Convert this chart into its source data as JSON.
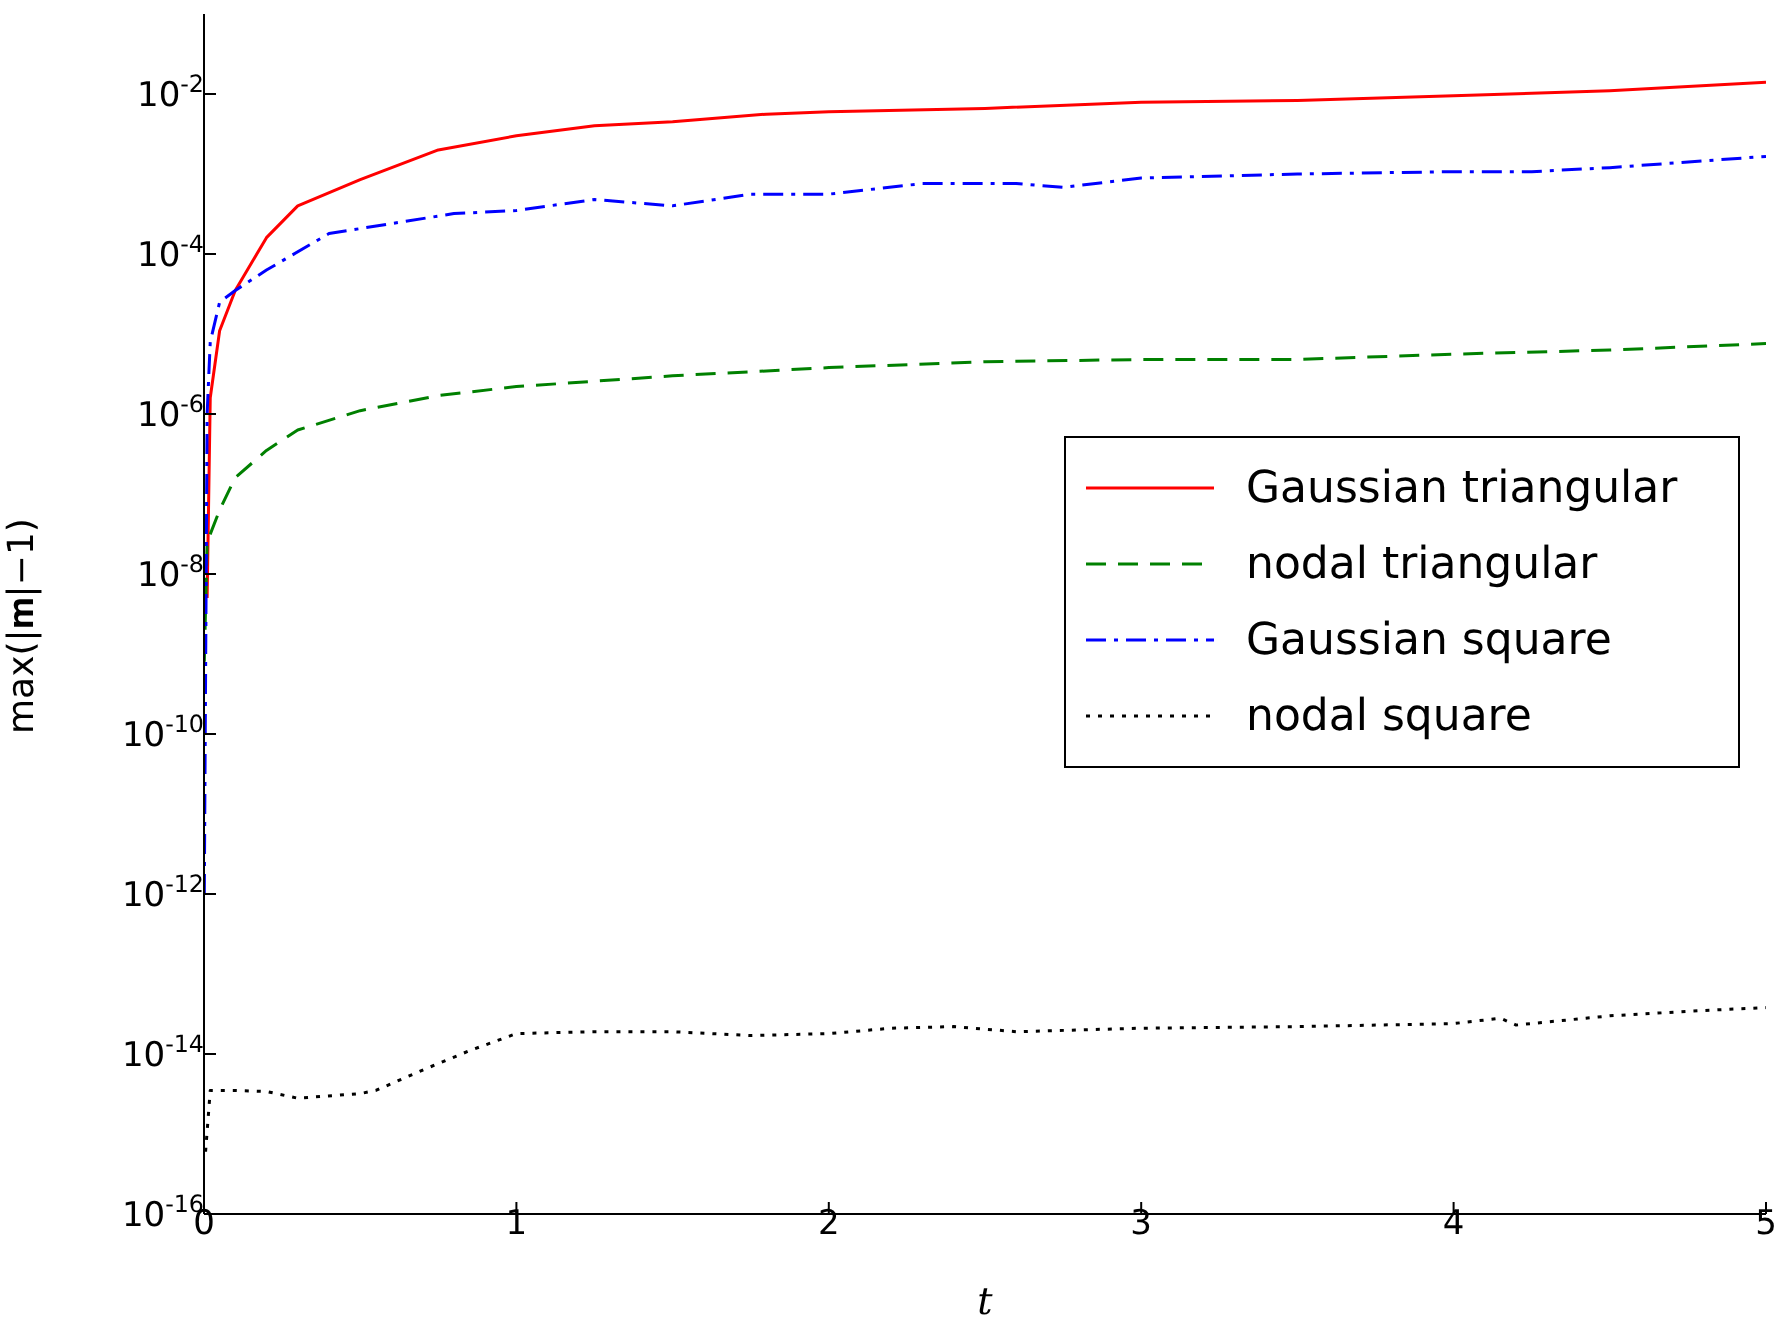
{
  "chart_data": {
    "type": "line",
    "xlabel": "t",
    "ylabel": "max(|𝐦|−1)",
    "log": "y",
    "grid": false,
    "legend": "right",
    "marker": "none",
    "xlim": [
      0,
      5
    ],
    "xticks": [
      0,
      1,
      2,
      3,
      4,
      5
    ],
    "ylim": [
      1e-16,
      0.1
    ],
    "yticks": [
      {
        "value": 1e-16,
        "label": "10$^{-16}$"
      },
      {
        "value": 1e-14,
        "label": "10$^{-14}$"
      },
      {
        "value": 1e-12,
        "label": "10$^{-12}$"
      },
      {
        "value": 1e-10,
        "label": "10$^{-10}$"
      },
      {
        "value": 1e-08,
        "label": "10$^{-8}$"
      },
      {
        "value": 1e-06,
        "label": "10$^{-6}$"
      },
      {
        "value": 0.0001,
        "label": "10$^{-4}$"
      },
      {
        "value": 0.01,
        "label": "10$^{-2}$"
      }
    ],
    "series": [
      {
        "name": "Gaussian triangular",
        "color": "#ff0000",
        "line_style": "solid",
        "x": [
          0.01,
          0.02,
          0.05,
          0.1,
          0.2,
          0.3,
          0.5,
          0.75,
          1,
          1.25,
          1.5,
          1.8,
          2,
          2.5,
          3,
          3.5,
          4,
          4.5,
          5
        ],
        "values": [
          5e-09,
          1.6e-06,
          1.1e-05,
          3.5e-05,
          0.00016,
          0.0004,
          0.00085,
          0.002,
          0.003,
          0.004,
          0.0045,
          0.0056,
          0.006,
          0.0066,
          0.0079,
          0.0083,
          0.0095,
          0.011,
          0.014
        ]
      },
      {
        "name": "nodal triangular",
        "color": "#008000",
        "line_style": "dashed",
        "x": [
          0.001,
          0.01,
          0.05,
          0.1,
          0.2,
          0.3,
          0.5,
          0.75,
          1,
          1.5,
          2,
          2.5,
          3,
          3.5,
          4,
          4.5,
          5
        ],
        "values": [
          8e-10,
          2.5e-08,
          6.3e-08,
          1.6e-07,
          3.5e-07,
          6.3e-07,
          1.1e-06,
          1.7e-06,
          2.2e-06,
          3e-06,
          3.8e-06,
          4.5e-06,
          4.8e-06,
          4.8e-06,
          5.6e-06,
          6.3e-06,
          7.6e-06
        ]
      },
      {
        "name": "Gaussian square",
        "color": "#0000ff",
        "line_style": "dashdot",
        "x": [
          0.001,
          0.01,
          0.02,
          0.05,
          0.1,
          0.2,
          0.4,
          0.6,
          0.8,
          1,
          1.25,
          1.5,
          1.75,
          2,
          2.3,
          2.6,
          2.75,
          3,
          3.5,
          4,
          4.25,
          4.5,
          5
        ],
        "values": [
          1e-12,
          1e-06,
          8e-06,
          2.5e-05,
          3.5e-05,
          6.3e-05,
          0.00018,
          0.00024,
          0.00032,
          0.00035,
          0.00048,
          0.0004,
          0.00056,
          0.00056,
          0.00076,
          0.00076,
          0.00068,
          0.00089,
          0.001,
          0.00107,
          0.00107,
          0.0012,
          0.00166
        ]
      },
      {
        "name": "nodal square",
        "color": "#000000",
        "line_style": "dotted",
        "x": [
          0.005,
          0.02,
          0.1,
          0.2,
          0.3,
          0.5,
          0.55,
          0.7,
          0.85,
          1,
          1.25,
          1.5,
          1.75,
          2,
          2.2,
          2.4,
          2.6,
          3,
          3.5,
          4,
          4.15,
          4.2,
          4.5,
          4.8,
          5
        ],
        "values": [
          6e-16,
          3.5e-15,
          3.5e-15,
          3.4e-15,
          2.8e-15,
          3.2e-15,
          3.5e-15,
          6.3e-15,
          1.1e-14,
          1.8e-14,
          1.9e-14,
          1.9e-14,
          1.7e-14,
          1.8e-14,
          2.1e-14,
          2.2e-14,
          1.9e-14,
          2.1e-14,
          2.2e-14,
          2.4e-14,
          2.8e-14,
          2.3e-14,
          3e-14,
          3.5e-14,
          3.8e-14
        ]
      }
    ]
  }
}
